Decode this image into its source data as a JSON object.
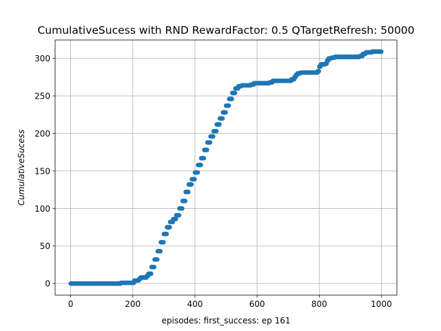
{
  "chart_data": {
    "type": "scatter",
    "title": "CumulativeSucess with RND RewardFactor: 0.5 QTargetRefresh: 50000",
    "xlabel": "episodes: first_success: ep 161",
    "ylabel": "CumulativeSucess",
    "xlim": [
      -50,
      1050
    ],
    "ylim": [
      -15.5,
      324.5
    ],
    "xticks": [
      0,
      200,
      400,
      600,
      800,
      1000
    ],
    "yticks": [
      0,
      50,
      100,
      150,
      200,
      250,
      300
    ],
    "grid": true,
    "color": "#1f77b4",
    "series": [
      {
        "x": [
          0,
          161,
          162,
          200,
          205,
          220,
          225,
          245,
          250,
          260,
          270,
          280,
          290,
          300,
          310,
          320,
          330,
          340,
          350,
          360,
          370,
          380,
          390,
          400,
          410,
          420,
          430,
          440,
          450,
          460,
          470,
          480,
          490,
          500,
          510,
          520,
          530,
          540,
          550,
          555,
          560,
          580,
          590,
          610,
          640,
          650,
          700,
          710,
          720,
          725,
          730,
          740,
          780,
          795,
          800,
          805,
          820,
          825,
          830,
          840,
          850,
          920,
          930,
          940,
          950,
          960,
          970,
          980,
          1000
        ],
        "y": [
          0,
          0,
          1,
          1,
          4,
          6,
          8,
          10,
          13,
          22,
          32,
          43,
          55,
          66,
          75,
          82,
          86,
          91,
          100,
          110,
          122,
          132,
          139,
          148,
          158,
          167,
          178,
          188,
          196,
          203,
          212,
          220,
          228,
          237,
          246,
          254,
          260,
          263,
          264,
          264,
          264,
          265,
          267,
          267,
          268,
          270,
          270,
          272,
          275,
          278,
          280,
          281,
          281,
          283,
          289,
          292,
          293,
          297,
          300,
          301,
          302,
          302,
          303,
          306,
          308,
          308,
          309,
          309,
          309
        ]
      }
    ]
  }
}
